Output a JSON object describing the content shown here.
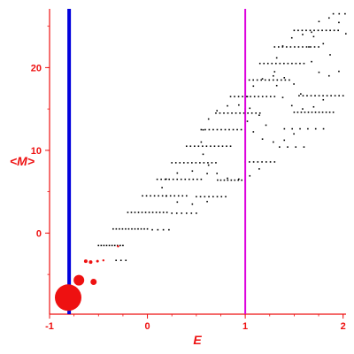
{
  "chart_data": {
    "type": "scatter",
    "xlabel": "E",
    "ylabel": "<M>",
    "xlim": [
      -1.0,
      2.03
    ],
    "ylim": [
      -9.8,
      27.1
    ],
    "x_ticks": [
      -1,
      0,
      1,
      2
    ],
    "y_ticks": [
      0,
      10,
      20
    ],
    "grid": false,
    "colors": {
      "axis": "#ee1111",
      "points": "#000000",
      "blue_line": "#0000dd",
      "magenta_line": "#dd00dd",
      "markers": "#ee1111"
    },
    "vertical_lines": [
      {
        "x": -0.8,
        "color": "#0000dd"
      },
      {
        "x": 1.0,
        "color": "#dd00dd"
      }
    ],
    "dot_rows": [
      {
        "y": -1.5,
        "x_from": -0.5,
        "x_to": -0.25,
        "count": 10
      },
      {
        "y": -3.3,
        "x_from": -0.32,
        "x_to": -0.22,
        "count": 3
      },
      {
        "y": 0.5,
        "x_from": -0.35,
        "x_to": 0.0,
        "count": 12
      },
      {
        "y": 2.5,
        "x_from": -0.2,
        "x_to": 0.2,
        "count": 12
      },
      {
        "y": 4.5,
        "x_from": -0.05,
        "x_to": 0.4,
        "count": 12
      },
      {
        "y": 6.5,
        "x_from": 0.1,
        "x_to": 0.55,
        "count": 12
      },
      {
        "y": 8.5,
        "x_from": 0.25,
        "x_to": 0.7,
        "count": 12
      },
      {
        "y": 10.5,
        "x_from": 0.4,
        "x_to": 0.85,
        "count": 12
      },
      {
        "y": 12.5,
        "x_from": 0.55,
        "x_to": 1.0,
        "count": 12
      },
      {
        "y": 14.5,
        "x_from": 0.7,
        "x_to": 1.15,
        "count": 12
      },
      {
        "y": 16.5,
        "x_from": 0.85,
        "x_to": 1.3,
        "count": 12
      },
      {
        "y": 18.5,
        "x_from": 1.0,
        "x_to": 1.45,
        "count": 12
      },
      {
        "y": 20.5,
        "x_from": 1.15,
        "x_to": 1.6,
        "count": 12
      },
      {
        "y": 22.5,
        "x_from": 1.3,
        "x_to": 1.75,
        "count": 12
      },
      {
        "y": 24.5,
        "x_from": 1.5,
        "x_to": 1.95,
        "count": 12
      },
      {
        "y": 26.5,
        "x_from": 1.9,
        "x_to": 2.02,
        "count": 3
      },
      {
        "y": 16.6,
        "x_from": 1.55,
        "x_to": 2.0,
        "count": 12
      },
      {
        "y": 14.6,
        "x_from": 1.5,
        "x_to": 1.9,
        "count": 12
      },
      {
        "y": 12.6,
        "x_from": 1.4,
        "x_to": 1.8,
        "count": 6
      },
      {
        "y": 10.4,
        "x_from": 1.35,
        "x_to": 1.6,
        "count": 4
      },
      {
        "y": 8.6,
        "x_from": 1.0,
        "x_to": 1.3,
        "count": 8
      },
      {
        "y": 6.4,
        "x_from": 0.75,
        "x_to": 1.0,
        "count": 8
      },
      {
        "y": 4.4,
        "x_from": 0.5,
        "x_to": 0.8,
        "count": 8
      },
      {
        "y": 2.4,
        "x_from": 0.25,
        "x_to": 0.5,
        "count": 6
      },
      {
        "y": 0.4,
        "x_from": 0.05,
        "x_to": 0.22,
        "count": 4
      }
    ],
    "dot_arcs": [
      {
        "cx": 0.9,
        "cy": 11.0,
        "rx": 0.35,
        "ry": 4.5,
        "count": 16
      },
      {
        "cx": 1.3,
        "cy": 15.0,
        "rx": 0.3,
        "ry": 4.0,
        "count": 14
      },
      {
        "cx": 1.6,
        "cy": 19.5,
        "rx": 0.3,
        "ry": 4.5,
        "count": 14
      },
      {
        "cx": 0.45,
        "cy": 5.5,
        "rx": 0.3,
        "ry": 2.0,
        "count": 10
      },
      {
        "cx": 1.85,
        "cy": 22.5,
        "rx": 0.2,
        "ry": 3.5,
        "count": 10
      }
    ],
    "red_markers": [
      {
        "x": -0.81,
        "y": -7.8,
        "size": 15
      },
      {
        "x": -0.7,
        "y": -5.7,
        "size": 6
      },
      {
        "x": -0.55,
        "y": -5.9,
        "size": 3.5
      },
      {
        "x": -0.63,
        "y": -3.4,
        "size": 2
      },
      {
        "x": -0.58,
        "y": -3.5,
        "size": 2
      },
      {
        "x": -0.51,
        "y": -3.4,
        "size": 1.5
      },
      {
        "x": -0.45,
        "y": -3.3,
        "size": 1.2
      },
      {
        "x": -0.3,
        "y": -1.6,
        "size": 1.2
      }
    ]
  }
}
